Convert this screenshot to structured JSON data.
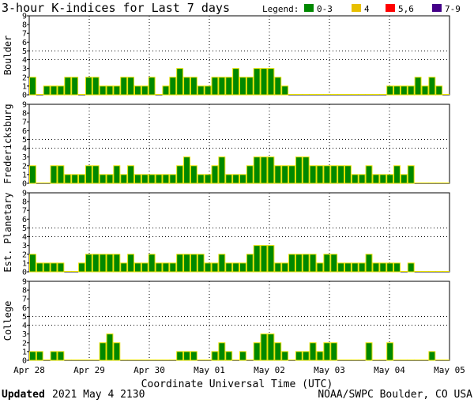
{
  "title": "3-hour K-indices for Last 7 days",
  "legend": {
    "label": "Legend:",
    "items": [
      {
        "label": "0-3",
        "color": "#008800"
      },
      {
        "label": "4",
        "color": "#e8c000"
      },
      {
        "label": "5,6",
        "color": "#ff0000"
      },
      {
        "label": "7-9",
        "color": "#440088"
      }
    ]
  },
  "xlabel": "Coordinate Universal Time (UTC)",
  "updated_label": "Updated",
  "updated_value": "2021 May  4 2130",
  "source": "NOAA/SWPC Boulder, CO USA",
  "colors": {
    "bar_fill": "#008800",
    "bar_edge": "#e8e000",
    "grid": "#000000"
  },
  "chart_data": [
    {
      "type": "bar",
      "station": "Boulder",
      "ylim": [
        0,
        9
      ],
      "yticks": [
        "0",
        "1",
        "2",
        "3",
        "4",
        "5",
        "6",
        "7",
        "8",
        "9"
      ],
      "xticks": [
        "Apr 28",
        "Apr 29",
        "Apr 30",
        "May 01",
        "May 02",
        "May 03",
        "May 04",
        "May 05"
      ],
      "values": [
        2,
        0,
        1,
        1,
        1,
        2,
        2,
        0,
        2,
        2,
        1,
        1,
        1,
        2,
        2,
        1,
        1,
        2,
        0,
        1,
        2,
        3,
        2,
        2,
        1,
        1,
        2,
        2,
        2,
        3,
        2,
        2,
        3,
        3,
        3,
        2,
        1,
        0,
        0,
        0,
        0,
        0,
        0,
        0,
        0,
        0,
        0,
        0,
        0,
        0,
        0,
        1,
        1,
        1,
        1,
        2,
        1,
        2,
        1,
        0
      ]
    },
    {
      "type": "bar",
      "station": "Fredericksburg",
      "ylim": [
        0,
        9
      ],
      "yticks": [
        "0",
        "1",
        "2",
        "3",
        "4",
        "5",
        "6",
        "7",
        "8",
        "9"
      ],
      "xticks": [
        "Apr 28",
        "Apr 29",
        "Apr 30",
        "May 01",
        "May 02",
        "May 03",
        "May 04",
        "May 05"
      ],
      "values": [
        2,
        0,
        0,
        2,
        2,
        1,
        1,
        1,
        2,
        2,
        1,
        1,
        2,
        1,
        2,
        1,
        1,
        1,
        1,
        1,
        1,
        2,
        3,
        2,
        1,
        1,
        2,
        3,
        1,
        1,
        1,
        2,
        3,
        3,
        3,
        2,
        2,
        2,
        3,
        3,
        2,
        2,
        2,
        2,
        2,
        2,
        1,
        1,
        2,
        1,
        1,
        1,
        2,
        1,
        2,
        0,
        0,
        0,
        0,
        0
      ]
    },
    {
      "type": "bar",
      "station": "Est. Planetary",
      "ylim": [
        0,
        9
      ],
      "yticks": [
        "0",
        "1",
        "2",
        "3",
        "4",
        "5",
        "6",
        "7",
        "8",
        "9"
      ],
      "xticks": [
        "Apr 28",
        "Apr 29",
        "Apr 30",
        "May 01",
        "May 02",
        "May 03",
        "May 04",
        "May 05"
      ],
      "values": [
        2,
        1,
        1,
        1,
        1,
        0,
        0,
        1,
        2,
        2,
        2,
        2,
        2,
        1,
        2,
        1,
        1,
        2,
        1,
        1,
        1,
        2,
        2,
        2,
        2,
        1,
        1,
        2,
        1,
        1,
        1,
        2,
        3,
        3,
        3,
        1,
        1,
        2,
        2,
        2,
        2,
        1,
        2,
        2,
        1,
        1,
        1,
        1,
        2,
        1,
        1,
        1,
        1,
        0,
        1,
        0,
        0,
        0,
        0,
        0
      ]
    },
    {
      "type": "bar",
      "station": "College",
      "ylim": [
        0,
        9
      ],
      "yticks": [
        "0",
        "1",
        "2",
        "3",
        "4",
        "5",
        "6",
        "7",
        "8",
        "9"
      ],
      "xticks": [
        "Apr 28",
        "Apr 29",
        "Apr 30",
        "May 01",
        "May 02",
        "May 03",
        "May 04",
        "May 05"
      ],
      "values": [
        1,
        1,
        0,
        1,
        1,
        0,
        0,
        0,
        0,
        0,
        2,
        3,
        2,
        0,
        0,
        0,
        0,
        0,
        0,
        0,
        0,
        1,
        1,
        1,
        0,
        0,
        1,
        2,
        1,
        0,
        1,
        0,
        2,
        3,
        3,
        2,
        1,
        0,
        1,
        1,
        2,
        1,
        2,
        2,
        0,
        0,
        0,
        0,
        2,
        0,
        0,
        2,
        0,
        0,
        0,
        0,
        0,
        1,
        0,
        0
      ]
    }
  ]
}
